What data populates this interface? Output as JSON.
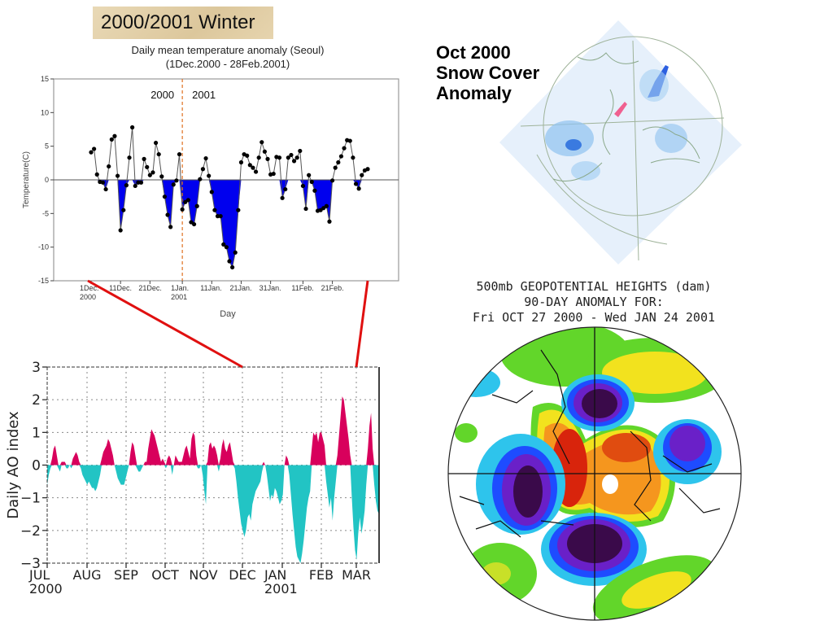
{
  "banner": {
    "title": "2000/2001 Winter"
  },
  "temperature_chart_header": {
    "title": "Daily mean temperature anomaly (Seoul)",
    "subtitle": "(1Dec.2000 - 28Feb.2001)"
  },
  "snow_map": {
    "title_lines": [
      "Oct 2000",
      "Snow Cover",
      "Anomaly"
    ]
  },
  "geopotential_map": {
    "title_lines": [
      "500mb GEOPOTENTIAL HEIGHTS (dam)",
      "90-DAY ANOMALY FOR:",
      "Fri OCT 27 2000 - Wed JAN 24 2001"
    ],
    "colors": {
      "purple": "#3a0a4a",
      "violet": "#6a20c8",
      "blue": "#1e4cff",
      "cyan": "#2ec4ec",
      "green": "#62d62a",
      "yellow": "#f2e21e",
      "orange": "#f5961e",
      "red": "#d8240c"
    }
  },
  "colors": {
    "temp_negative_fill": "#0000ee",
    "ao_positive": "#d8005c",
    "ao_negative": "#22c4c4",
    "connector": "#e01010",
    "year_divider": "#e07020"
  },
  "chart_data": [
    {
      "type": "area",
      "title": "Daily mean temperature anomaly (Seoul)",
      "subtitle": "(1Dec.2000 - 28Feb.2001)",
      "xlabel": "Day",
      "ylabel": "Temperature(C)",
      "ylim": [
        -15,
        15
      ],
      "yticks": [
        15,
        10,
        5,
        0,
        -5,
        -10,
        -15
      ],
      "xticks": [
        "1Dec.\n2000",
        "11Dec.",
        "21Dec.",
        "1Jan.\n2001",
        "11Jan.",
        "21Jan.",
        "31Jan.",
        "11Feb.",
        "21Feb."
      ],
      "xtick_days": [
        0,
        10,
        20,
        31,
        41,
        51,
        61,
        72,
        82
      ],
      "annotations": [
        "2000",
        "2001"
      ],
      "divider_day": 31,
      "grid": false,
      "negative_fill": "blue",
      "days": 90,
      "values": [
        4.1,
        4.6,
        0.8,
        -0.3,
        -0.4,
        -1.4,
        2.0,
        6.0,
        6.5,
        0.6,
        -7.5,
        -4.5,
        -0.8,
        3.3,
        7.8,
        -0.9,
        -0.4,
        -0.4,
        3.1,
        1.9,
        0.7,
        1.1,
        5.5,
        3.8,
        0.5,
        -2.5,
        -5.2,
        -7.0,
        -0.7,
        -0.1,
        3.8,
        -4.4,
        -3.3,
        -3.0,
        -6.3,
        -6.6,
        -3.9,
        0.1,
        1.6,
        3.2,
        0.6,
        -1.8,
        -4.5,
        -5.4,
        -5.4,
        -9.6,
        -10.0,
        -12.1,
        -13.0,
        -10.8,
        -4.5,
        2.6,
        3.8,
        3.6,
        2.2,
        1.8,
        1.2,
        3.3,
        5.6,
        4.2,
        3.1,
        0.8,
        0.9,
        3.4,
        3.3,
        -2.7,
        -1.4,
        3.3,
        3.7,
        2.8,
        3.3,
        4.3,
        -0.9,
        -4.3,
        0.7,
        -0.3,
        -1.6,
        -4.6,
        -4.5,
        -4.2,
        -3.9,
        -6.2,
        -0.1,
        1.8,
        2.6,
        3.5,
        4.7,
        5.9,
        5.8,
        3.3,
        -0.6,
        -1.3,
        0.7,
        1.4,
        1.6
      ]
    },
    {
      "type": "area",
      "title": "",
      "ylabel": "Daily AO index",
      "xlabel": "",
      "ylim": [
        -3,
        3
      ],
      "yticks": [
        3,
        2,
        1,
        0,
        -1,
        -2,
        -3
      ],
      "xticks": [
        "JUL\n2000",
        "AUG",
        "SEP",
        "OCT",
        "NOV",
        "DEC",
        "JAN\n2001",
        "FEB",
        "MAR"
      ],
      "grid": true,
      "positive_fill": "magenta",
      "negative_fill": "cyan",
      "period": "1 Jul 2000 - ~20 Mar 2001 (daily)",
      "values": [
        -0.6,
        -0.3,
        -0.1,
        0.2,
        0.5,
        0.6,
        0.3,
        -0.1,
        -0.2,
        0.1,
        0.1,
        0.1,
        -0.1,
        -0.1,
        0.0,
        -0.1,
        0.2,
        0.3,
        0.4,
        0.3,
        0.1,
        -0.1,
        -0.3,
        -0.4,
        -0.5,
        -0.6,
        -0.5,
        -0.6,
        -0.7,
        -0.7,
        -0.8,
        -0.7,
        -0.5,
        -0.3,
        0.2,
        0.4,
        0.5,
        0.6,
        0.8,
        0.7,
        0.5,
        0.3,
        0.0,
        -0.2,
        -0.4,
        -0.5,
        -0.6,
        -0.6,
        -0.6,
        -0.4,
        -0.2,
        0.0,
        0.4,
        0.7,
        0.6,
        0.3,
        -0.1,
        -0.2,
        -0.2,
        -0.1,
        0.0,
        0.1,
        0.1,
        0.5,
        0.8,
        1.1,
        1.0,
        0.9,
        0.7,
        0.5,
        0.3,
        0.1,
        0.2,
        0.1,
        -0.1,
        0.2,
        0.3,
        0.2,
        -0.3,
        0.0,
        0.3,
        0.2,
        0.1,
        0.1,
        0.1,
        0.3,
        0.5,
        0.6,
        0.4,
        0.2,
        0.8,
        1.0,
        0.9,
        0.3,
        -0.1,
        -0.1,
        0.0,
        -0.3,
        -0.8,
        -1.2,
        0.1,
        0.6,
        0.7,
        0.5,
        0.6,
        0.5,
        0.3,
        -0.2,
        0.2,
        0.6,
        0.8,
        0.5,
        0.4,
        0.6,
        0.7,
        0.4,
        0.1,
        -0.1,
        -0.5,
        -1.0,
        -1.4,
        -1.8,
        -2.0,
        -2.2,
        -2.0,
        -1.6,
        -1.5,
        -1.7,
        -1.2,
        -1.0,
        -0.8,
        -0.7,
        -0.6,
        -0.5,
        -0.2,
        0.1,
        0.0,
        -0.3,
        -0.7,
        -1.1,
        -0.9,
        -1.0,
        -0.7,
        -0.8,
        -1.0,
        -1.2,
        -1.1,
        -0.9,
        0.0,
        0.3,
        0.2,
        -0.3,
        -0.9,
        -1.5,
        -2.0,
        -2.5,
        -2.8,
        -2.9,
        -3.0,
        -2.7,
        -2.3,
        -1.8,
        -1.3,
        -1.0,
        -0.8,
        0.5,
        1.0,
        0.9,
        1.0,
        0.7,
        1.0,
        1.0,
        0.8,
        0.6,
        -0.5,
        -0.9,
        -1.3,
        -1.0,
        -1.7,
        -1.0,
        -0.5,
        0.3,
        0.9,
        1.5,
        2.1,
        2.0,
        1.6,
        1.2,
        0.8,
        0.3,
        -1.0,
        -1.9,
        -2.6,
        -2.9,
        -2.1,
        -1.6,
        -2.1,
        -1.8,
        -1.4,
        -0.6,
        0.5,
        1.2,
        1.6,
        0.5,
        -0.6,
        -1.1,
        -1.4,
        -1.5
      ]
    }
  ]
}
